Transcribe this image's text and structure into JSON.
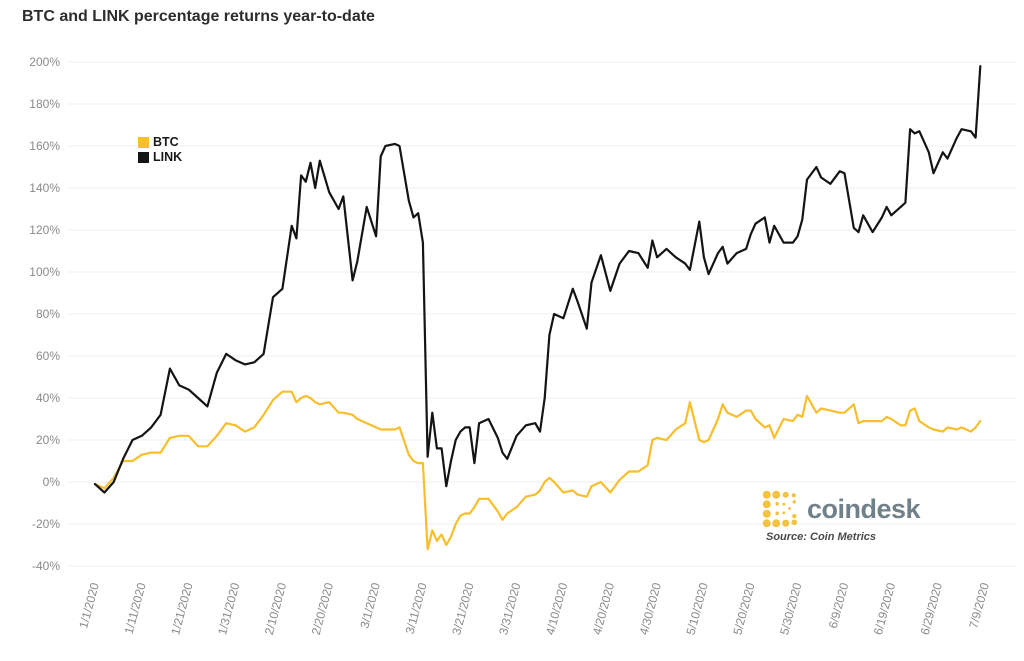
{
  "title": "BTC and LINK percentage returns year-to-date",
  "legend": {
    "items": [
      {
        "label": "BTC",
        "color": "#F8BE2C"
      },
      {
        "label": "LINK",
        "color": "#141414"
      }
    ]
  },
  "branding": {
    "wordmark": "coindesk",
    "source": "Source: Coin Metrics",
    "logo_color": "#F2C343",
    "wordmark_color": "#70818a"
  },
  "colors": {
    "background": "#ffffff",
    "gridline": "#efefef",
    "axis_label": "#8a8a8a",
    "title_text": "#2d2d2d",
    "btc_line": "#F8BE2C",
    "link_line": "#141414"
  },
  "chart_data": {
    "type": "line",
    "title": "BTC and LINK percentage returns year-to-date",
    "xlabel": "",
    "ylabel": "",
    "x_unit": "days since 1/1/2020",
    "xlim": [
      0,
      190
    ],
    "ylim": [
      -40,
      200
    ],
    "grid": "horizontal only",
    "legend_position": "top-left inside plot",
    "x_tick_days": [
      0,
      10,
      20,
      30,
      40,
      50,
      60,
      70,
      80,
      90,
      100,
      110,
      120,
      130,
      140,
      150,
      160,
      170,
      180,
      190
    ],
    "x_tick_labels": [
      "1/1/2020",
      "1/11/2020",
      "1/21/2020",
      "1/31/2020",
      "2/10/2020",
      "2/20/2020",
      "3/1/2020",
      "3/11/2020",
      "3/21/2020",
      "3/31/2020",
      "4/10/2020",
      "4/20/2020",
      "4/30/2020",
      "5/10/2020",
      "5/20/2020",
      "5/30/2020",
      "6/9/2020",
      "6/19/2020",
      "6/29/2020",
      "7/9/2020"
    ],
    "y_tick_values": [
      200,
      180,
      160,
      140,
      120,
      100,
      80,
      60,
      40,
      20,
      0,
      -20,
      -40
    ],
    "y_tick_labels": [
      "200%",
      "180%",
      "160%",
      "140%",
      "120%",
      "100%",
      "80%",
      "60%",
      "40%",
      "20%",
      "0%",
      "-20%",
      "-40%"
    ],
    "series": [
      {
        "name": "LINK",
        "color": "#141414",
        "points": [
          [
            0,
            -1
          ],
          [
            2,
            -5
          ],
          [
            4,
            0
          ],
          [
            6,
            11
          ],
          [
            8,
            20
          ],
          [
            10,
            22
          ],
          [
            12,
            26
          ],
          [
            14,
            32
          ],
          [
            16,
            54
          ],
          [
            18,
            46
          ],
          [
            20,
            44
          ],
          [
            22,
            40
          ],
          [
            24,
            36
          ],
          [
            26,
            52
          ],
          [
            28,
            61
          ],
          [
            30,
            58
          ],
          [
            32,
            56
          ],
          [
            34,
            57
          ],
          [
            36,
            61
          ],
          [
            38,
            88
          ],
          [
            40,
            92
          ],
          [
            42,
            122
          ],
          [
            43,
            116
          ],
          [
            44,
            146
          ],
          [
            45,
            143
          ],
          [
            46,
            152
          ],
          [
            47,
            140
          ],
          [
            48,
            153
          ],
          [
            50,
            138
          ],
          [
            52,
            130
          ],
          [
            53,
            136
          ],
          [
            55,
            96
          ],
          [
            56,
            105
          ],
          [
            58,
            131
          ],
          [
            60,
            117
          ],
          [
            61,
            155
          ],
          [
            62,
            160
          ],
          [
            64,
            161
          ],
          [
            65,
            160
          ],
          [
            67,
            134
          ],
          [
            68,
            126
          ],
          [
            69,
            128
          ],
          [
            70,
            114
          ],
          [
            71,
            12
          ],
          [
            72,
            33
          ],
          [
            73,
            16
          ],
          [
            74,
            16
          ],
          [
            75,
            -2
          ],
          [
            76,
            10
          ],
          [
            77,
            20
          ],
          [
            78,
            24
          ],
          [
            79,
            26
          ],
          [
            80,
            26
          ],
          [
            81,
            9
          ],
          [
            82,
            28
          ],
          [
            83,
            29
          ],
          [
            84,
            30
          ],
          [
            86,
            21
          ],
          [
            87,
            14
          ],
          [
            88,
            11
          ],
          [
            90,
            22
          ],
          [
            92,
            27
          ],
          [
            94,
            28
          ],
          [
            95,
            24
          ],
          [
            96,
            40
          ],
          [
            97,
            70
          ],
          [
            98,
            80
          ],
          [
            100,
            78
          ],
          [
            102,
            92
          ],
          [
            103,
            86
          ],
          [
            105,
            73
          ],
          [
            106,
            95
          ],
          [
            108,
            108
          ],
          [
            110,
            91
          ],
          [
            112,
            104
          ],
          [
            114,
            110
          ],
          [
            116,
            109
          ],
          [
            118,
            102
          ],
          [
            119,
            115
          ],
          [
            120,
            107
          ],
          [
            122,
            111
          ],
          [
            124,
            107
          ],
          [
            126,
            104
          ],
          [
            127,
            101
          ],
          [
            129,
            124
          ],
          [
            130,
            107
          ],
          [
            131,
            99
          ],
          [
            133,
            109
          ],
          [
            134,
            112
          ],
          [
            135,
            104
          ],
          [
            137,
            109
          ],
          [
            139,
            111
          ],
          [
            140,
            118
          ],
          [
            141,
            123
          ],
          [
            143,
            126
          ],
          [
            144,
            114
          ],
          [
            145,
            122
          ],
          [
            147,
            114
          ],
          [
            149,
            114
          ],
          [
            150,
            117
          ],
          [
            151,
            125
          ],
          [
            152,
            144
          ],
          [
            154,
            150
          ],
          [
            155,
            145
          ],
          [
            157,
            142
          ],
          [
            159,
            148
          ],
          [
            160,
            147
          ],
          [
            162,
            121
          ],
          [
            163,
            119
          ],
          [
            164,
            127
          ],
          [
            166,
            119
          ],
          [
            168,
            126
          ],
          [
            169,
            131
          ],
          [
            170,
            127
          ],
          [
            172,
            131
          ],
          [
            173,
            133
          ],
          [
            174,
            168
          ],
          [
            175,
            166
          ],
          [
            176,
            167
          ],
          [
            178,
            157
          ],
          [
            179,
            147
          ],
          [
            181,
            157
          ],
          [
            182,
            154
          ],
          [
            184,
            164
          ],
          [
            185,
            168
          ],
          [
            187,
            167
          ],
          [
            188,
            164
          ],
          [
            189,
            198
          ]
        ]
      },
      {
        "name": "BTC",
        "color": "#F8BE2C",
        "points": [
          [
            0,
            -1
          ],
          [
            2,
            -3
          ],
          [
            4,
            2
          ],
          [
            6,
            10
          ],
          [
            8,
            10
          ],
          [
            10,
            13
          ],
          [
            12,
            14
          ],
          [
            14,
            14
          ],
          [
            16,
            21
          ],
          [
            18,
            22
          ],
          [
            20,
            22
          ],
          [
            22,
            17
          ],
          [
            24,
            17
          ],
          [
            26,
            22
          ],
          [
            28,
            28
          ],
          [
            30,
            27
          ],
          [
            32,
            24
          ],
          [
            34,
            26
          ],
          [
            36,
            32
          ],
          [
            38,
            39
          ],
          [
            40,
            43
          ],
          [
            42,
            43
          ],
          [
            43,
            38
          ],
          [
            44,
            40
          ],
          [
            45,
            41
          ],
          [
            46,
            40
          ],
          [
            47,
            38
          ],
          [
            48,
            37
          ],
          [
            50,
            38
          ],
          [
            52,
            33
          ],
          [
            53,
            33
          ],
          [
            55,
            32
          ],
          [
            56,
            30
          ],
          [
            58,
            28
          ],
          [
            60,
            26
          ],
          [
            61,
            25
          ],
          [
            62,
            25
          ],
          [
            64,
            25
          ],
          [
            65,
            26
          ],
          [
            67,
            13
          ],
          [
            68,
            10
          ],
          [
            69,
            9
          ],
          [
            70,
            9
          ],
          [
            71,
            -32
          ],
          [
            72,
            -23
          ],
          [
            73,
            -28
          ],
          [
            74,
            -25
          ],
          [
            75,
            -30
          ],
          [
            76,
            -26
          ],
          [
            77,
            -20
          ],
          [
            78,
            -16
          ],
          [
            79,
            -15
          ],
          [
            80,
            -15
          ],
          [
            81,
            -12
          ],
          [
            82,
            -8
          ],
          [
            83,
            -8
          ],
          [
            84,
            -8
          ],
          [
            86,
            -14
          ],
          [
            87,
            -18
          ],
          [
            88,
            -15
          ],
          [
            90,
            -12
          ],
          [
            92,
            -7
          ],
          [
            94,
            -6
          ],
          [
            95,
            -4
          ],
          [
            96,
            0
          ],
          [
            97,
            2
          ],
          [
            98,
            0
          ],
          [
            100,
            -5
          ],
          [
            102,
            -4
          ],
          [
            103,
            -6
          ],
          [
            105,
            -7
          ],
          [
            106,
            -2
          ],
          [
            108,
            0
          ],
          [
            110,
            -5
          ],
          [
            112,
            1
          ],
          [
            114,
            5
          ],
          [
            116,
            5
          ],
          [
            118,
            8
          ],
          [
            119,
            20
          ],
          [
            120,
            21
          ],
          [
            122,
            20
          ],
          [
            124,
            25
          ],
          [
            126,
            28
          ],
          [
            127,
            38
          ],
          [
            129,
            20
          ],
          [
            130,
            19
          ],
          [
            131,
            20
          ],
          [
            133,
            30
          ],
          [
            134,
            37
          ],
          [
            135,
            33
          ],
          [
            137,
            31
          ],
          [
            139,
            34
          ],
          [
            140,
            34
          ],
          [
            141,
            30
          ],
          [
            143,
            26
          ],
          [
            144,
            27
          ],
          [
            145,
            21
          ],
          [
            147,
            30
          ],
          [
            149,
            29
          ],
          [
            150,
            32
          ],
          [
            151,
            31
          ],
          [
            152,
            41
          ],
          [
            154,
            33
          ],
          [
            155,
            35
          ],
          [
            157,
            34
          ],
          [
            159,
            33
          ],
          [
            160,
            33
          ],
          [
            162,
            37
          ],
          [
            163,
            28
          ],
          [
            164,
            29
          ],
          [
            166,
            29
          ],
          [
            168,
            29
          ],
          [
            169,
            31
          ],
          [
            170,
            30
          ],
          [
            172,
            27
          ],
          [
            173,
            27
          ],
          [
            174,
            34
          ],
          [
            175,
            35
          ],
          [
            176,
            29
          ],
          [
            178,
            26
          ],
          [
            179,
            25
          ],
          [
            181,
            24
          ],
          [
            182,
            26
          ],
          [
            184,
            25
          ],
          [
            185,
            26
          ],
          [
            187,
            24
          ],
          [
            188,
            26
          ],
          [
            189,
            29
          ]
        ]
      }
    ]
  }
}
